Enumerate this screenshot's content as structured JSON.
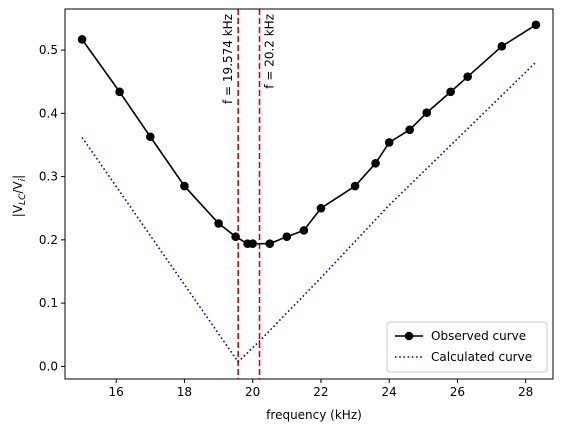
{
  "chart_data": {
    "type": "line",
    "title": "",
    "xlabel": "frequency (kHz)",
    "ylabel_main": "|V",
    "ylabel_sub": "LC",
    "ylabel_mid": "/V",
    "ylabel_sub2": "i",
    "ylabel_end": "|",
    "xlim": [
      14.5,
      28.8
    ],
    "ylim": [
      -0.02,
      0.565
    ],
    "xticks": [
      16,
      18,
      20,
      22,
      24,
      26,
      28
    ],
    "yticks": [
      0.0,
      0.1,
      0.2,
      0.3,
      0.4,
      0.5
    ],
    "xtick_labels": [
      "16",
      "18",
      "20",
      "22",
      "24",
      "26",
      "28"
    ],
    "ytick_labels": [
      "0.0",
      "0.1",
      "0.2",
      "0.3",
      "0.4",
      "0.5"
    ],
    "grid": false,
    "legend_position": "lower-right",
    "series": [
      {
        "name": "Observed curve",
        "style": "solid-marker",
        "color": "#000000",
        "x": [
          15.0,
          16.1,
          17.0,
          18.0,
          19.0,
          19.5,
          19.85,
          20.0,
          20.5,
          21.0,
          21.5,
          22.0,
          23.0,
          23.6,
          24.0,
          24.6,
          25.1,
          25.8,
          26.3,
          27.3,
          28.3
        ],
        "y": [
          0.517,
          0.434,
          0.363,
          0.285,
          0.226,
          0.205,
          0.194,
          0.194,
          0.194,
          0.205,
          0.215,
          0.25,
          0.285,
          0.321,
          0.354,
          0.374,
          0.401,
          0.434,
          0.458,
          0.506,
          0.54
        ]
      },
      {
        "name": "Calculated curve",
        "style": "dotted",
        "color": "#0000cc",
        "x": [
          15.0,
          19.574,
          20.2,
          22.0,
          24.0,
          26.0,
          28.3
        ],
        "y": [
          0.362,
          0.007,
          0.04,
          0.14,
          0.255,
          0.36,
          0.481
        ]
      }
    ],
    "vlines": [
      {
        "x": 19.574,
        "color": "#dd0000",
        "label": "f = 19.574 kHz"
      },
      {
        "x": 20.2,
        "color": "#dd0000",
        "label": "f = 20.2 kHz"
      }
    ]
  }
}
